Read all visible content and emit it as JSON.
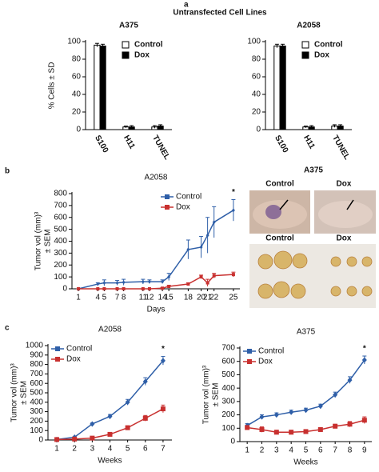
{
  "figure": {
    "title": "Untransfected Cell Lines",
    "panel_labels": [
      "a",
      "b",
      "c"
    ]
  },
  "photo_panel": {
    "title": "A375",
    "top_labels": [
      "Control",
      "Dox"
    ],
    "bottom_labels": [
      "Control",
      "Dox"
    ]
  },
  "chart_data": [
    {
      "type": "bar",
      "title": "A375",
      "ylabel": "% Cells ± SD",
      "categories": [
        "S100",
        "H11",
        "TUNEL"
      ],
      "series": [
        {
          "name": "Control",
          "color": "#ffffff",
          "values": [
            96,
            3,
            3
          ],
          "errors": [
            2,
            1,
            1.5
          ]
        },
        {
          "name": "Dox",
          "color": "#000000",
          "values": [
            95,
            3,
            4
          ],
          "errors": [
            2,
            1.5,
            1.5
          ]
        }
      ],
      "ylim": [
        0,
        100
      ],
      "yticks": [
        0,
        20,
        40,
        60,
        80,
        100
      ],
      "legend": "upper right"
    },
    {
      "type": "bar",
      "title": "A2058",
      "categories": [
        "S100",
        "H11",
        "TUNEL"
      ],
      "series": [
        {
          "name": "Control",
          "color": "#ffffff",
          "values": [
            95,
            3,
            4
          ],
          "errors": [
            2,
            1,
            1.5
          ]
        },
        {
          "name": "Dox",
          "color": "#000000",
          "values": [
            95,
            3,
            4
          ],
          "errors": [
            2,
            1.5,
            1.5
          ]
        }
      ],
      "ylim": [
        0,
        100
      ],
      "yticks": [
        0,
        20,
        40,
        60,
        80,
        100
      ],
      "legend": "upper right"
    },
    {
      "type": "line",
      "title": "A2058",
      "xlabel": "Days",
      "ylabel": "Tumor vol (mm)³",
      "ylabel2": "± SEM",
      "x": [
        1,
        4,
        5,
        7,
        8,
        11,
        12,
        14,
        15,
        18,
        20,
        21,
        22,
        25
      ],
      "series": [
        {
          "name": "Control",
          "color": "#2f5fa8",
          "values": [
            0,
            40,
            50,
            50,
            55,
            60,
            60,
            60,
            100,
            330,
            350,
            450,
            560,
            660
          ],
          "errors": [
            0,
            10,
            25,
            20,
            25,
            20,
            15,
            15,
            30,
            80,
            90,
            150,
            130,
            90
          ]
        },
        {
          "name": "Dox",
          "color": "#c8302f",
          "values": [
            0,
            0,
            0,
            0,
            0,
            0,
            0,
            5,
            20,
            40,
            100,
            50,
            110,
            120
          ],
          "errors": [
            0,
            0,
            0,
            0,
            0,
            0,
            0,
            5,
            10,
            10,
            15,
            30,
            20,
            20
          ]
        }
      ],
      "xlim": [
        0,
        26
      ],
      "xticks": [
        1,
        4,
        5,
        7,
        8,
        11,
        12,
        14,
        15,
        18,
        20,
        21,
        22,
        25
      ],
      "ylim": [
        0,
        800
      ],
      "yticks": [
        0,
        100,
        200,
        300,
        400,
        500,
        600,
        700,
        800
      ],
      "legend": "upper center",
      "annotation": "*"
    },
    {
      "type": "line",
      "title": "A2058",
      "xlabel": "Weeks",
      "ylabel": "Tumor vol (mm)³",
      "ylabel2": "± SEM",
      "x": [
        1,
        2,
        3,
        4,
        5,
        6,
        7
      ],
      "series": [
        {
          "name": "Control",
          "color": "#2f5fa8",
          "values": [
            5,
            30,
            170,
            250,
            400,
            620,
            840
          ],
          "errors": [
            2,
            5,
            10,
            20,
            30,
            40,
            45
          ]
        },
        {
          "name": "Dox",
          "color": "#c8302f",
          "values": [
            5,
            10,
            20,
            60,
            130,
            230,
            330
          ],
          "errors": [
            2,
            5,
            8,
            15,
            20,
            30,
            40
          ]
        }
      ],
      "xlim": [
        0.5,
        7.5
      ],
      "xticks": [
        1,
        2,
        3,
        4,
        5,
        6,
        7
      ],
      "ylim": [
        0,
        1000
      ],
      "yticks": [
        0,
        100,
        200,
        300,
        400,
        500,
        600,
        700,
        800,
        900,
        1000
      ],
      "legend": "upper left",
      "annotation": "*"
    },
    {
      "type": "line",
      "title": "A375",
      "xlabel": "Weeks",
      "ylabel": "Tumor vol (mm)³",
      "ylabel2": "± SEM",
      "x": [
        1,
        2,
        3,
        4,
        5,
        6,
        7,
        8,
        9
      ],
      "series": [
        {
          "name": "Control",
          "color": "#2f5fa8",
          "values": [
            120,
            185,
            200,
            220,
            235,
            265,
            350,
            460,
            610
          ],
          "errors": [
            15,
            15,
            15,
            15,
            15,
            15,
            20,
            25,
            30
          ]
        },
        {
          "name": "Dox",
          "color": "#c8302f",
          "values": [
            105,
            90,
            70,
            70,
            75,
            90,
            115,
            130,
            160
          ],
          "errors": [
            15,
            20,
            15,
            15,
            15,
            15,
            15,
            20,
            25
          ]
        }
      ],
      "xlim": [
        0.5,
        9.5
      ],
      "xticks": [
        1,
        2,
        3,
        4,
        5,
        6,
        7,
        8,
        9
      ],
      "ylim": [
        0,
        700
      ],
      "yticks": [
        0,
        100,
        200,
        300,
        400,
        500,
        600,
        700
      ],
      "legend": "upper left",
      "annotation": "*"
    }
  ]
}
